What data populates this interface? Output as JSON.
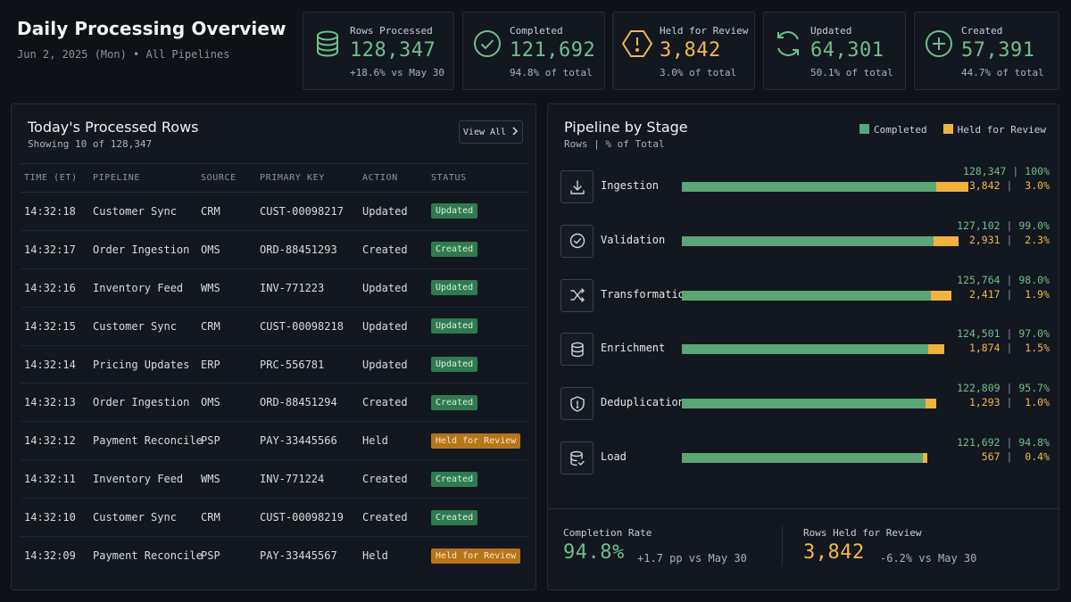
{
  "header": {
    "title": "Daily Processing Overview",
    "subtitle": "Jun 2, 2025 (Mon) • All Pipelines"
  },
  "colors": {
    "completed": "#5aa675",
    "held": "#f0b33e"
  },
  "kpis": [
    {
      "icon": "database-icon",
      "label": "Rows Processed",
      "value": "128,347",
      "sub": "+18.6% vs May 30",
      "tone": "green"
    },
    {
      "icon": "check-circle-icon",
      "label": "Completed",
      "value": "121,692",
      "sub": "94.8% of total",
      "tone": "green"
    },
    {
      "icon": "alert-hexagon-icon",
      "label": "Held for Review",
      "value": "3,842",
      "sub": "3.0% of total",
      "tone": "amber"
    },
    {
      "icon": "refresh-icon",
      "label": "Updated",
      "value": "64,301",
      "sub": "50.1% of total",
      "tone": "green"
    },
    {
      "icon": "plus-circle-icon",
      "label": "Created",
      "value": "57,391",
      "sub": "44.7% of total",
      "tone": "green"
    }
  ],
  "rows_panel": {
    "title": "Today's Processed Rows",
    "subtitle": "Showing 10 of 128,347",
    "view_all": "View All",
    "columns": [
      "TIME (ET)",
      "PIPELINE",
      "SOURCE",
      "PRIMARY KEY",
      "ACTION",
      "STATUS"
    ],
    "rows": [
      {
        "time": "14:32:18",
        "pipeline": "Customer Sync",
        "source": "CRM",
        "key": "CUST-00098217",
        "action": "Updated",
        "status": "Updated",
        "tone": "green"
      },
      {
        "time": "14:32:17",
        "pipeline": "Order Ingestion",
        "source": "OMS",
        "key": "ORD-88451293",
        "action": "Created",
        "status": "Created",
        "tone": "green"
      },
      {
        "time": "14:32:16",
        "pipeline": "Inventory Feed",
        "source": "WMS",
        "key": "INV-771223",
        "action": "Updated",
        "status": "Updated",
        "tone": "green"
      },
      {
        "time": "14:32:15",
        "pipeline": "Customer Sync",
        "source": "CRM",
        "key": "CUST-00098218",
        "action": "Updated",
        "status": "Updated",
        "tone": "green"
      },
      {
        "time": "14:32:14",
        "pipeline": "Pricing Updates",
        "source": "ERP",
        "key": "PRC-556781",
        "action": "Updated",
        "status": "Updated",
        "tone": "green"
      },
      {
        "time": "14:32:13",
        "pipeline": "Order Ingestion",
        "source": "OMS",
        "key": "ORD-88451294",
        "action": "Created",
        "status": "Created",
        "tone": "green"
      },
      {
        "time": "14:32:12",
        "pipeline": "Payment Reconcile",
        "source": "PSP",
        "key": "PAY-33445566",
        "action": "Held",
        "status": "Held for Review",
        "tone": "amber"
      },
      {
        "time": "14:32:11",
        "pipeline": "Inventory Feed",
        "source": "WMS",
        "key": "INV-771224",
        "action": "Created",
        "status": "Created",
        "tone": "green"
      },
      {
        "time": "14:32:10",
        "pipeline": "Customer Sync",
        "source": "CRM",
        "key": "CUST-00098219",
        "action": "Created",
        "status": "Created",
        "tone": "green"
      },
      {
        "time": "14:32:09",
        "pipeline": "Payment Reconcile",
        "source": "PSP",
        "key": "PAY-33445567",
        "action": "Held",
        "status": "Held for Review",
        "tone": "amber"
      }
    ]
  },
  "stage_panel": {
    "title": "Pipeline by Stage",
    "subtitle": "Rows | % of Total",
    "legend": [
      "Completed",
      "Held for Review"
    ],
    "stages": [
      {
        "name": "Ingestion",
        "icon": "download-icon",
        "completed": "128,347",
        "completed_pct": "100%",
        "held": "3,842",
        "held_pct": "3.0%",
        "completed_frac": 1.0,
        "held_frac": 0.03
      },
      {
        "name": "Validation",
        "icon": "check-circle-icon",
        "completed": "127,102",
        "completed_pct": "99.0%",
        "held": "2,931",
        "held_pct": "2.3%",
        "completed_frac": 0.99,
        "held_frac": 0.023
      },
      {
        "name": "Transformation",
        "icon": "shuffle-icon",
        "completed": "125,764",
        "completed_pct": "98.0%",
        "held": "2,417",
        "held_pct": "1.9%",
        "completed_frac": 0.98,
        "held_frac": 0.019
      },
      {
        "name": "Enrichment",
        "icon": "database-icon",
        "completed": "124,501",
        "completed_pct": "97.0%",
        "held": "1,874",
        "held_pct": "1.5%",
        "completed_frac": 0.97,
        "held_frac": 0.015
      },
      {
        "name": "Deduplication",
        "icon": "shield-alert-icon",
        "completed": "122,809",
        "completed_pct": "95.7%",
        "held": "1,293",
        "held_pct": "1.0%",
        "completed_frac": 0.957,
        "held_frac": 0.01
      },
      {
        "name": "Load",
        "icon": "database-check-icon",
        "completed": "121,692",
        "completed_pct": "94.8%",
        "held": "567",
        "held_pct": "0.4%",
        "completed_frac": 0.948,
        "held_frac": 0.004
      }
    ]
  },
  "bottom_stats": {
    "completion": {
      "label": "Completion Rate",
      "value": "94.8%",
      "delta": "+1.7 pp vs May 30"
    },
    "held": {
      "label": "Rows Held for Review",
      "value": "3,842",
      "delta": "-6.2% vs May 30"
    }
  }
}
